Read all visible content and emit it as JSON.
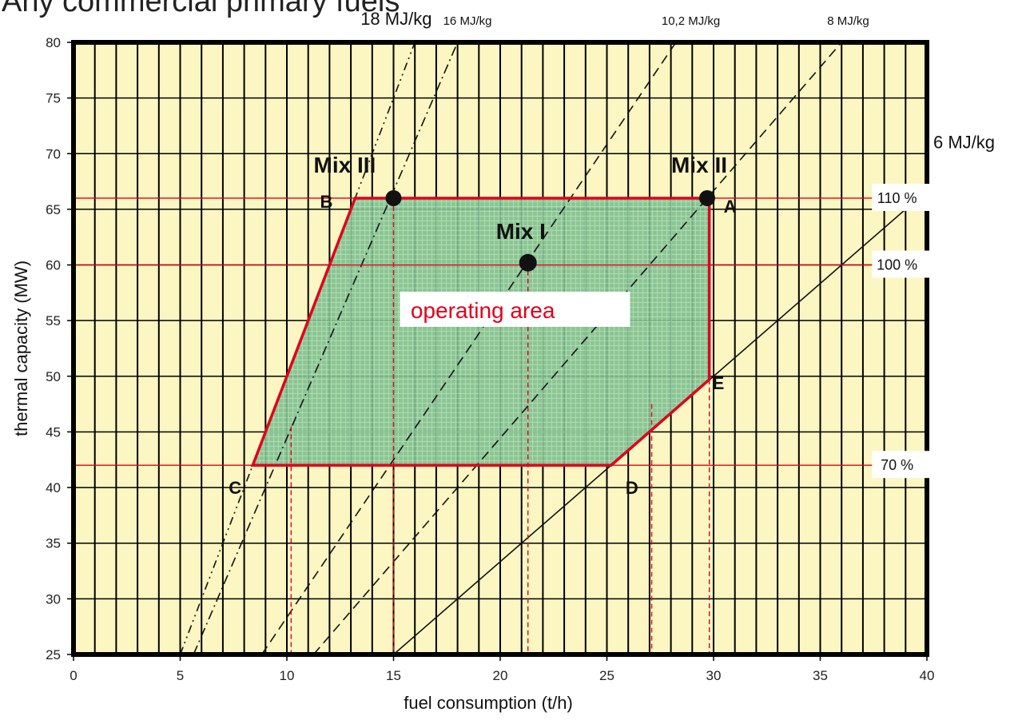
{
  "header_fragment": "Any commercial primary fuels",
  "chart_data": {
    "type": "line",
    "xlabel": "fuel consumption (t/h)",
    "ylabel": "thermal capacity (MW)",
    "xlim": [
      0,
      40
    ],
    "ylim": [
      25,
      80
    ],
    "xticks": [
      0,
      5,
      10,
      15,
      20,
      25,
      30,
      35,
      40
    ],
    "yticks": [
      25,
      30,
      35,
      40,
      45,
      50,
      55,
      60,
      65,
      70,
      75,
      80
    ],
    "grid": true,
    "background_color": "#fbf6c2",
    "area_color": "#7fc08f",
    "boundary_color": "#e0001b",
    "heating_value_lines": [
      {
        "name": "18 MJ/kg",
        "mj_per_kg": 18,
        "style": "dash-dot-dot"
      },
      {
        "name": "16 MJ/kg",
        "mj_per_kg": 16,
        "style": "dash-dot"
      },
      {
        "name": "10,2 MJ/kg",
        "mj_per_kg": 10.2,
        "style": "dashed"
      },
      {
        "name": "8 MJ/kg",
        "mj_per_kg": 8,
        "style": "dashed"
      },
      {
        "name": "6 MJ/kg",
        "mj_per_kg": 6,
        "style": "solid"
      }
    ],
    "load_levels": [
      {
        "label": "110 %",
        "y": 66
      },
      {
        "label": "100 %",
        "y": 60
      },
      {
        "label": "70 %",
        "y": 42
      }
    ],
    "operating_area": {
      "label": "operating area",
      "vertices": [
        {
          "name": "A",
          "x": 29.8,
          "y": 66
        },
        {
          "name": "B",
          "x": 13.2,
          "y": 66
        },
        {
          "name": "C",
          "x": 8.4,
          "y": 42
        },
        {
          "name": "D",
          "x": 25.2,
          "y": 42
        },
        {
          "name": "E",
          "x": 29.8,
          "y": 49.7
        }
      ]
    },
    "mix_points": [
      {
        "name": "Mix I",
        "x": 21.3,
        "y": 60.2
      },
      {
        "name": "Mix II",
        "x": 29.7,
        "y": 66
      },
      {
        "name": "Mix III",
        "x": 15.0,
        "y": 66
      }
    ],
    "reference_x_lines": [
      10.2,
      15,
      21.3,
      27.1,
      29.8
    ]
  }
}
